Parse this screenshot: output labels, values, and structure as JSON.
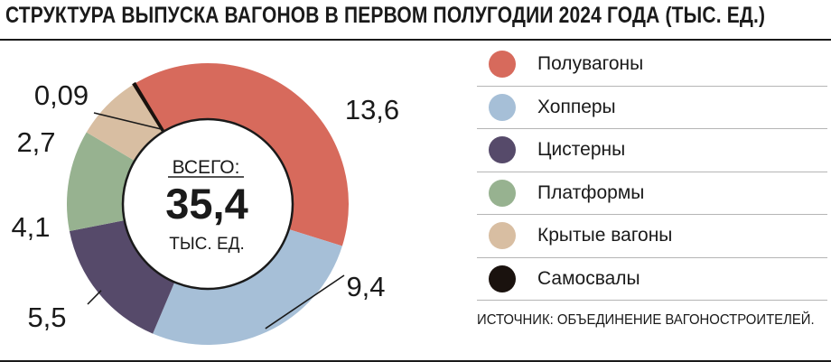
{
  "title": "СТРУКТУРА ВЫПУСКА ВАГОНОВ В ПЕРВОМ ПОЛУГОДИИ 2024 ГОДА (ТЫС. ЕД.)",
  "source": "ИСТОЧНИК: ОБЪЕДИНЕНИЕ ВАГОНОСТРОИТЕЛЕЙ.",
  "center": {
    "label": "ВСЕГО:",
    "value": "35,4",
    "unit": "ТЫС. ЕД."
  },
  "chart_data": {
    "type": "pie",
    "title": "СТРУКТУРА ВЫПУСКА ВАГОНОВ В ПЕРВОМ ПОЛУГОДИИ 2024 ГОДА (ТЫС. ЕД.)",
    "total": 35.4,
    "total_label": "35,4",
    "legend_position": "right",
    "slices": [
      {
        "name": "Полувагоны",
        "value": 13.6,
        "label": "13,6",
        "color": "#d76a5c"
      },
      {
        "name": "Хопперы",
        "value": 9.4,
        "label": "9,4",
        "color": "#a6bfd7"
      },
      {
        "name": "Цистерны",
        "value": 5.5,
        "label": "5,5",
        "color": "#564a6a"
      },
      {
        "name": "Платформы",
        "value": 4.1,
        "label": "4,1",
        "color": "#97b290"
      },
      {
        "name": "Крытые вагоны",
        "value": 2.7,
        "label": "2,7",
        "color": "#d8bea2"
      },
      {
        "name": "Самосвалы",
        "value": 0.09,
        "label": "0,09",
        "color": "#1a120e"
      }
    ]
  }
}
